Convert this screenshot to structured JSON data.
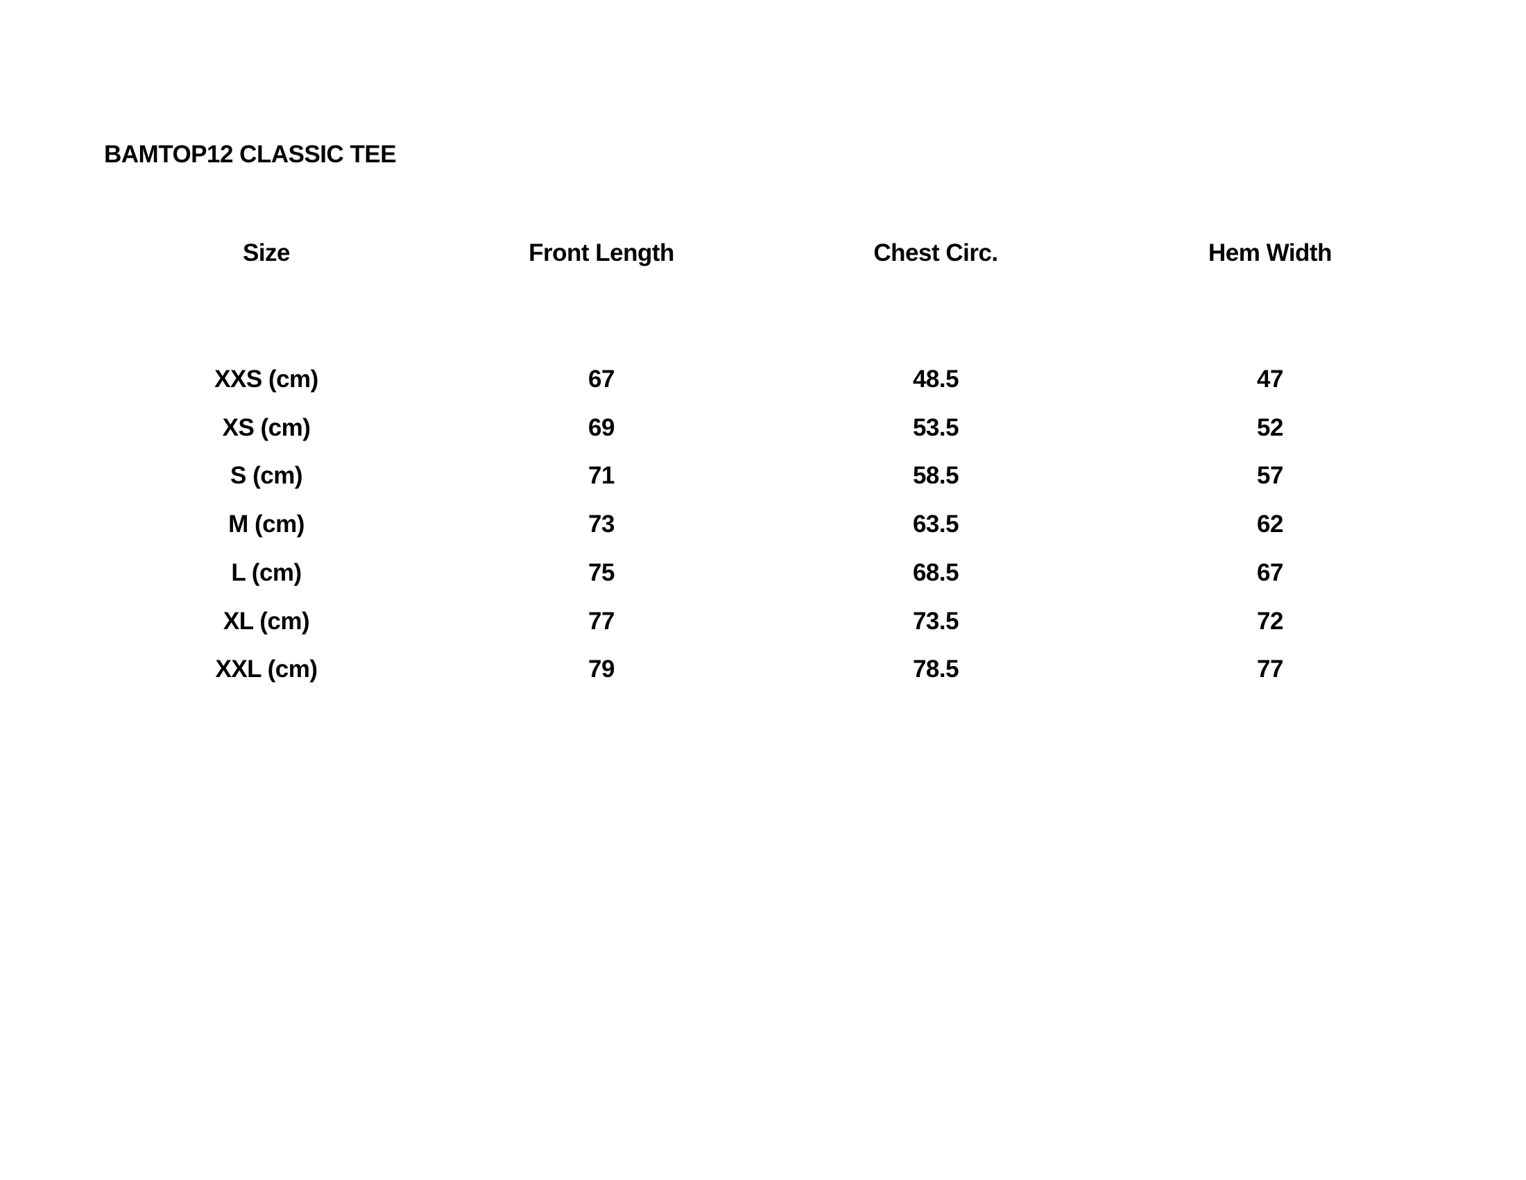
{
  "title": "BAMTOP12 CLASSIC TEE",
  "table": {
    "headers": [
      "Size",
      "Front Length",
      "Chest Circ.",
      "Hem Width"
    ],
    "rows": [
      [
        "XXS (cm)",
        "67",
        "48.5",
        "47"
      ],
      [
        "XS (cm)",
        "69",
        "53.5",
        "52"
      ],
      [
        "S (cm)",
        "71",
        "58.5",
        "57"
      ],
      [
        "M (cm)",
        "73",
        "63.5",
        "62"
      ],
      [
        "L (cm)",
        "75",
        "68.5",
        "67"
      ],
      [
        "XL (cm)",
        "77",
        "73.5",
        "72"
      ],
      [
        "XXL (cm)",
        "79",
        "78.5",
        "77"
      ]
    ]
  }
}
